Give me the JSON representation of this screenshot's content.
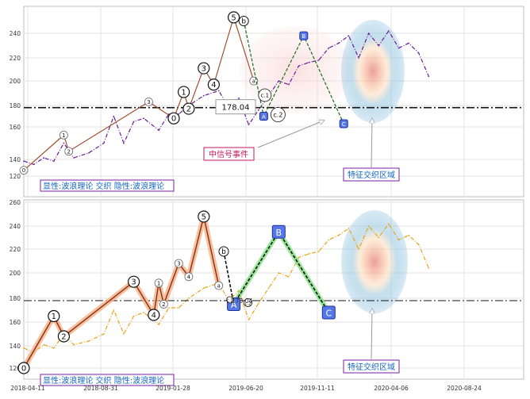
{
  "chart_data": [
    {
      "type": "line",
      "panel": "top",
      "yticks": [
        120,
        140,
        160,
        180,
        200,
        220,
        240
      ],
      "ylim": [
        112,
        258
      ],
      "grid": true,
      "reference_line": {
        "value": 178.04,
        "label": "178.04",
        "style": "dash-dot"
      },
      "price_series": {
        "color": "#6a1b9a",
        "style": "dash-dot",
        "x": [
          0.0,
          0.02,
          0.04,
          0.06,
          0.08,
          0.1,
          0.13,
          0.16,
          0.18,
          0.2,
          0.22,
          0.24,
          0.27,
          0.29,
          0.31,
          0.33,
          0.36,
          0.39,
          0.41,
          0.43,
          0.45,
          0.47,
          0.49,
          0.51,
          0.53,
          0.55,
          0.57,
          0.59,
          0.61,
          0.63,
          0.65,
          0.67,
          0.69,
          0.71,
          0.73,
          0.75,
          0.77,
          0.79,
          0.81
        ],
        "y": [
          138,
          134,
          141,
          138,
          150,
          141,
          144,
          150,
          170,
          150,
          165,
          168,
          158,
          172,
          172,
          180,
          188,
          192,
          178,
          186,
          162,
          176,
          188,
          200,
          197,
          213,
          216,
          218,
          228,
          232,
          238,
          220,
          240,
          230,
          242,
          228,
          232,
          224,
          204
        ]
      },
      "wave_path": {
        "color": "#a0522d",
        "x": [
          0.0,
          0.08,
          0.09,
          0.25,
          0.3,
          0.32,
          0.33,
          0.36,
          0.38,
          0.42,
          0.46
        ],
        "y": [
          127,
          155,
          145,
          183,
          168,
          191,
          177,
          211,
          197,
          253,
          200
        ],
        "labels": [
          "0",
          "1",
          "2",
          "3",
          "0",
          "1",
          "2",
          "3",
          "4",
          "5",
          "a"
        ]
      },
      "projection": {
        "color": "#1a6b1a",
        "x": [
          0.44,
          0.48,
          0.56,
          0.64
        ],
        "y": [
          250,
          170,
          238,
          163
        ],
        "labels": [
          "b",
          "A",
          "B",
          "C"
        ]
      },
      "labels": {
        "wave_point_labels": [
          "0",
          "1",
          "2",
          "3",
          "0",
          "1",
          "2",
          "3",
          "4",
          "5",
          "a",
          "b",
          "c.1",
          "c.2"
        ],
        "label_a": "A",
        "label_b": "B",
        "label_c": "C"
      },
      "annotations": {
        "reference_label": "178.04",
        "signal_label": "中信号事件",
        "zone_label": "特征交织区域",
        "legend_text": "显性:波浪理论 交织 隐性:波浪理论"
      }
    },
    {
      "type": "line",
      "panel": "bottom",
      "yticks": [
        120,
        140,
        160,
        180,
        200,
        220,
        240,
        260
      ],
      "ylim": [
        112,
        262
      ],
      "xticks": [
        "2018-04-11",
        "2018-08-31",
        "2019-01-28",
        "2019-06-20",
        "2019-11-11",
        "2020-04-06",
        "2020-08-24"
      ],
      "grid": true,
      "reference_line": {
        "value": 178.04,
        "label": "178.04",
        "style": "dash-dot"
      },
      "price_series": {
        "color": "#e8a317",
        "style": "dash-dot",
        "x": [
          0.0,
          0.02,
          0.04,
          0.06,
          0.08,
          0.1,
          0.13,
          0.16,
          0.18,
          0.2,
          0.22,
          0.24,
          0.27,
          0.29,
          0.31,
          0.33,
          0.36,
          0.39,
          0.41,
          0.43,
          0.45,
          0.47,
          0.49,
          0.51,
          0.53,
          0.55,
          0.57,
          0.59,
          0.61,
          0.63,
          0.65,
          0.67,
          0.69,
          0.71,
          0.73,
          0.75,
          0.77,
          0.79,
          0.81
        ],
        "y": [
          138,
          134,
          141,
          138,
          150,
          141,
          144,
          150,
          170,
          150,
          165,
          168,
          158,
          172,
          172,
          180,
          188,
          192,
          178,
          186,
          162,
          176,
          188,
          200,
          197,
          213,
          216,
          218,
          228,
          232,
          238,
          220,
          240,
          230,
          242,
          228,
          232,
          224,
          204
        ]
      },
      "wave_path": {
        "color": "#e07a5f",
        "x": [
          0.0,
          0.06,
          0.08,
          0.22,
          0.26,
          0.27,
          0.28,
          0.31,
          0.33,
          0.36,
          0.39
        ],
        "y": [
          120,
          165,
          148,
          193,
          166,
          192,
          175,
          208,
          197,
          248,
          190
        ],
        "labels": [
          "0",
          "1",
          "2",
          "3",
          "4",
          "1",
          "2",
          "3",
          "4",
          "5",
          "a"
        ]
      },
      "projection": {
        "color": "#4cd64c",
        "x": [
          0.4,
          0.42,
          0.51,
          0.61
        ],
        "y": [
          218,
          175,
          235,
          168
        ],
        "labels": [
          "b",
          "A",
          "B",
          "C"
        ]
      },
      "labels": {
        "wave_point_labels": [
          "0",
          "1",
          "2",
          "3",
          "4",
          "1",
          "2",
          "3",
          "4",
          "5",
          "a",
          "b",
          "c.1",
          "c.2"
        ],
        "label_a": "A",
        "label_b": "B",
        "label_c": "C"
      },
      "annotations": {
        "reference_label": "178.04",
        "zone_label": "特征交织区域",
        "legend_text": "显性:波浪理论 交织 隐性:波浪理论"
      }
    }
  ]
}
